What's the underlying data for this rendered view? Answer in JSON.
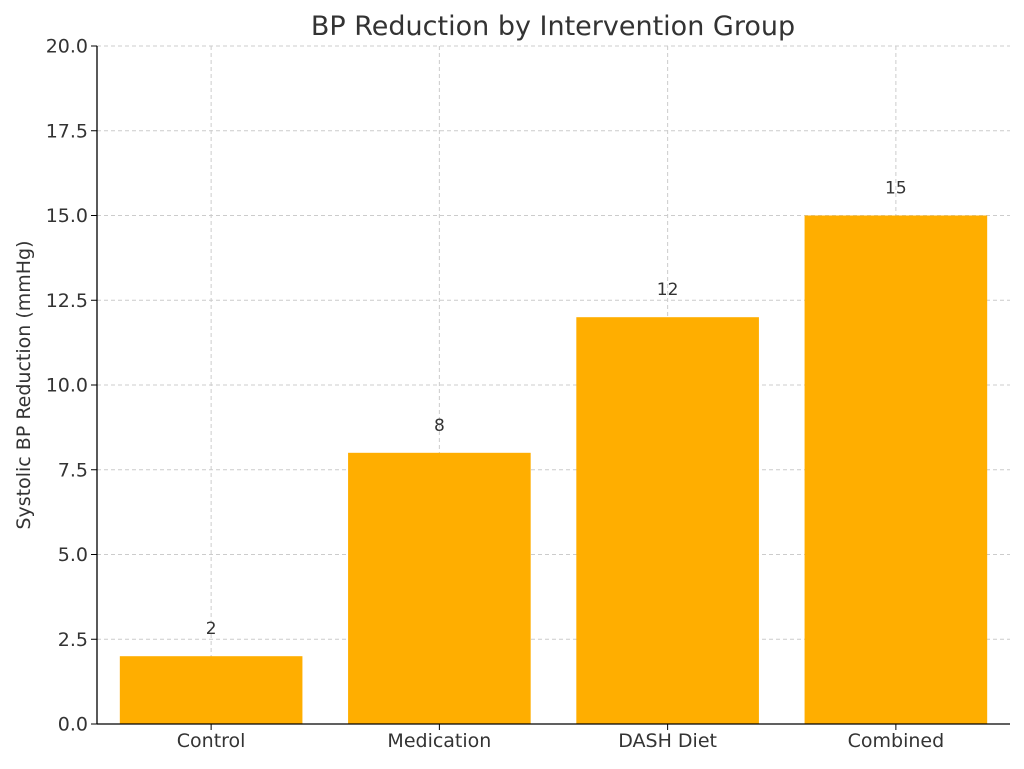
{
  "chart_data": {
    "type": "bar",
    "title": "BP Reduction by Intervention Group",
    "xlabel": "",
    "ylabel": "Systolic BP Reduction (mmHg)",
    "categories": [
      "Control",
      "Medication",
      "DASH Diet",
      "Combined"
    ],
    "values": [
      2,
      8,
      12,
      15
    ],
    "data_labels": [
      "2",
      "8",
      "12",
      "15"
    ],
    "ylim": [
      0,
      20
    ],
    "yticks": [
      0.0,
      2.5,
      5.0,
      7.5,
      10.0,
      12.5,
      15.0,
      17.5,
      20.0
    ],
    "ytick_labels": [
      "0.0",
      "2.5",
      "5.0",
      "7.5",
      "10.0",
      "12.5",
      "15.0",
      "17.5",
      "20.0"
    ],
    "grid": true,
    "bar_color": "#FFAE00",
    "text_color": "#333333",
    "grid_color": "#CCCCCC",
    "axis_color": "#000000"
  }
}
